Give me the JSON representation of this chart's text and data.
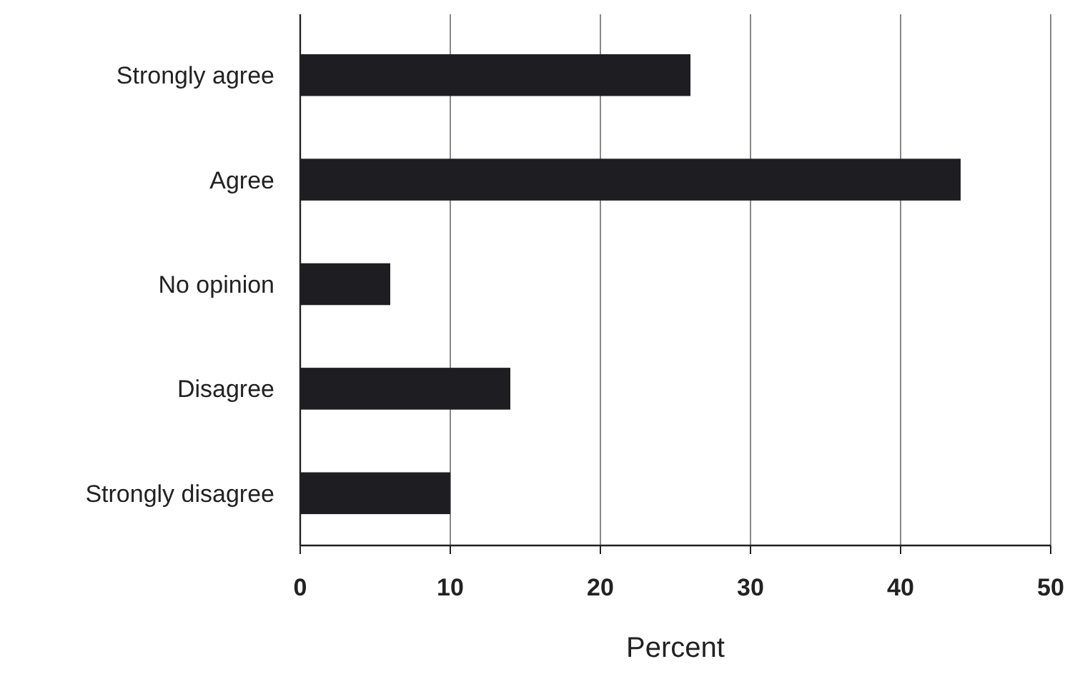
{
  "chart_data": {
    "type": "bar",
    "orientation": "horizontal",
    "xlabel": "Percent",
    "categories": [
      "Strongly agree",
      "Agree",
      "No opinion",
      "Disagree",
      "Strongly disagree"
    ],
    "values": [
      26,
      44,
      6,
      14,
      10
    ],
    "color": "#1e1e22",
    "xlim": [
      0,
      50
    ],
    "xticks": [
      0,
      10,
      20,
      30,
      40,
      50
    ],
    "grid": "x"
  }
}
